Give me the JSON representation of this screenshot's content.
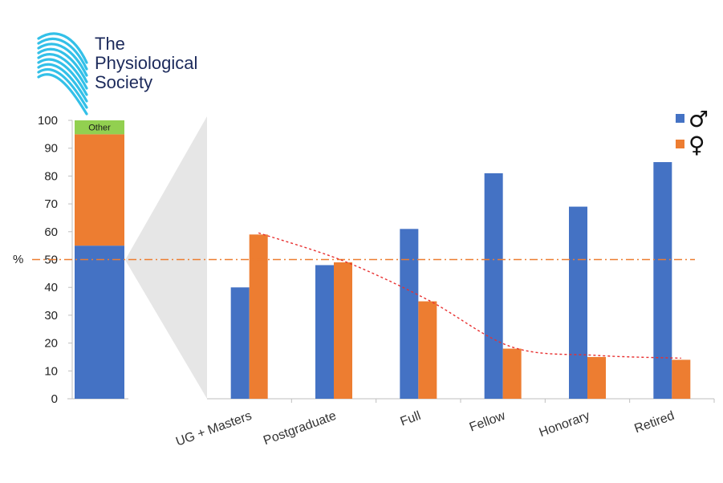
{
  "logo": {
    "lines": [
      "The",
      "Physiological",
      "Society"
    ],
    "color": "#1c2a5b",
    "icon": "wave-lines-icon",
    "icon_color": "#33c0e8"
  },
  "chart_data": [
    {
      "type": "bar",
      "stacked": true,
      "ylabel": "%",
      "ylim": [
        0,
        100
      ],
      "yticks": [
        0,
        10,
        20,
        30,
        40,
        50,
        60,
        70,
        80,
        90,
        100
      ],
      "series": [
        {
          "values": [
            55
          ],
          "color": "#4472c4"
        },
        {
          "values": [
            40
          ],
          "color": "#ed7d31"
        },
        {
          "name": "Other",
          "values": [
            5
          ],
          "color": "#92d050"
        }
      ],
      "reference_line": {
        "y": 50,
        "style": "dash-dot",
        "color": "#ed7d31"
      }
    },
    {
      "type": "bar",
      "categories": [
        "UG + Masters",
        "Postgraduate",
        "Full",
        "Fellow",
        "Honorary",
        "Retired"
      ],
      "ylim": [
        0,
        100
      ],
      "series": [
        {
          "name": "♂",
          "values": [
            40,
            48,
            61,
            81,
            69,
            85
          ],
          "color": "#4472c4"
        },
        {
          "name": "♀",
          "values": [
            59,
            49,
            35,
            18,
            15,
            14
          ],
          "color": "#ed7d31"
        }
      ],
      "legend_position": "top-right",
      "reference_line": {
        "y": 50,
        "style": "dash-dot",
        "color": "#ed7d31"
      },
      "trendline": {
        "series": "♀",
        "style": "dotted",
        "color": "#e83030"
      }
    }
  ]
}
